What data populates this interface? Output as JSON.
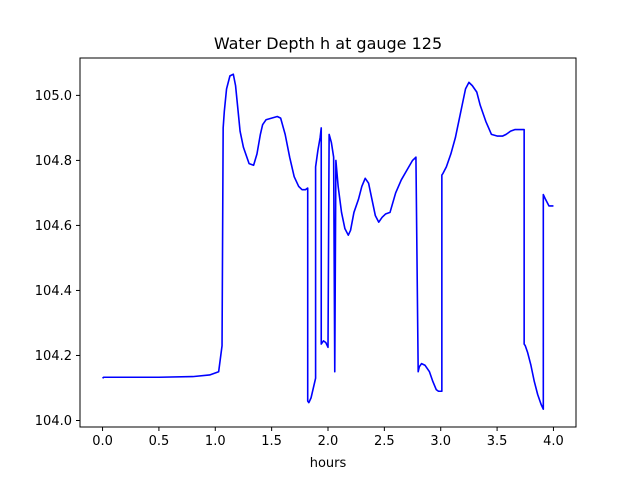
{
  "chart_data": {
    "type": "line",
    "title": "Water Depth h at gauge 125",
    "xlabel": "hours",
    "ylabel": "",
    "xlim": [
      -0.2,
      4.2
    ],
    "ylim": [
      103.98,
      105.115
    ],
    "xticks": [
      0.0,
      0.5,
      1.0,
      1.5,
      2.0,
      2.5,
      3.0,
      3.5,
      4.0
    ],
    "xtick_labels": [
      "0.0",
      "0.5",
      "1.0",
      "1.5",
      "2.0",
      "2.5",
      "3.0",
      "3.5",
      "4.0"
    ],
    "yticks": [
      104.0,
      104.2,
      104.4,
      104.6,
      104.8,
      105.0
    ],
    "ytick_labels": [
      "104.0",
      "104.2",
      "104.4",
      "104.6",
      "104.8",
      "105.0"
    ],
    "grid": false,
    "series": [
      {
        "color": "#0000ff",
        "x": [
          0.0,
          0.01,
          0.5,
          0.8,
          0.95,
          1.03,
          1.06,
          1.07,
          1.08,
          1.08,
          1.1,
          1.13,
          1.16,
          1.18,
          1.2,
          1.22,
          1.25,
          1.3,
          1.34,
          1.37,
          1.4,
          1.42,
          1.45,
          1.5,
          1.55,
          1.58,
          1.62,
          1.66,
          1.7,
          1.74,
          1.77,
          1.8,
          1.82,
          1.82,
          1.83,
          1.85,
          1.87,
          1.89,
          1.89,
          1.91,
          1.93,
          1.94,
          1.94,
          1.96,
          1.98,
          2.0,
          2.01,
          2.01,
          2.03,
          2.05,
          2.06,
          2.06,
          2.07,
          2.07,
          2.09,
          2.12,
          2.15,
          2.18,
          2.2,
          2.23,
          2.27,
          2.3,
          2.33,
          2.36,
          2.39,
          2.42,
          2.45,
          2.48,
          2.51,
          2.55,
          2.6,
          2.65,
          2.7,
          2.75,
          2.78,
          2.8,
          2.8,
          2.81,
          2.83,
          2.86,
          2.9,
          2.93,
          2.96,
          2.98,
          3.01,
          3.01,
          3.02,
          3.05,
          3.09,
          3.13,
          3.16,
          3.19,
          3.22,
          3.25,
          3.28,
          3.32,
          3.35,
          3.38,
          3.4,
          3.45,
          3.5,
          3.55,
          3.58,
          3.62,
          3.66,
          3.7,
          3.74,
          3.74,
          3.75,
          3.77,
          3.8,
          3.83,
          3.86,
          3.89,
          3.91,
          3.91,
          3.93,
          3.96,
          4.0
        ],
        "y": [
          104.13,
          104.133,
          104.133,
          104.135,
          104.14,
          104.15,
          104.23,
          104.9,
          104.95,
          104.95,
          105.02,
          105.06,
          105.065,
          105.03,
          104.96,
          104.89,
          104.84,
          104.79,
          104.785,
          104.82,
          104.88,
          104.91,
          104.925,
          104.93,
          104.935,
          104.93,
          104.88,
          104.81,
          104.75,
          104.72,
          104.71,
          104.71,
          104.715,
          104.06,
          104.055,
          104.07,
          104.1,
          104.13,
          104.78,
          104.83,
          104.87,
          104.9,
          104.235,
          104.245,
          104.24,
          104.225,
          104.88,
          104.88,
          104.855,
          104.81,
          104.15,
          104.15,
          104.8,
          104.8,
          104.72,
          104.64,
          104.59,
          104.57,
          104.585,
          104.64,
          104.68,
          104.72,
          104.745,
          104.73,
          104.68,
          104.63,
          104.61,
          104.625,
          104.635,
          104.64,
          104.7,
          104.74,
          104.77,
          104.8,
          104.81,
          104.15,
          104.15,
          104.165,
          104.175,
          104.17,
          104.15,
          104.12,
          104.095,
          104.09,
          104.09,
          104.755,
          104.76,
          104.78,
          104.82,
          104.87,
          104.92,
          104.97,
          105.02,
          105.04,
          105.03,
          105.01,
          104.97,
          104.94,
          104.92,
          104.88,
          104.875,
          104.875,
          104.88,
          104.89,
          104.895,
          104.895,
          104.895,
          104.235,
          104.23,
          104.21,
          104.17,
          104.12,
          104.08,
          104.05,
          104.035,
          104.695,
          104.68,
          104.66,
          104.66
        ]
      }
    ]
  }
}
